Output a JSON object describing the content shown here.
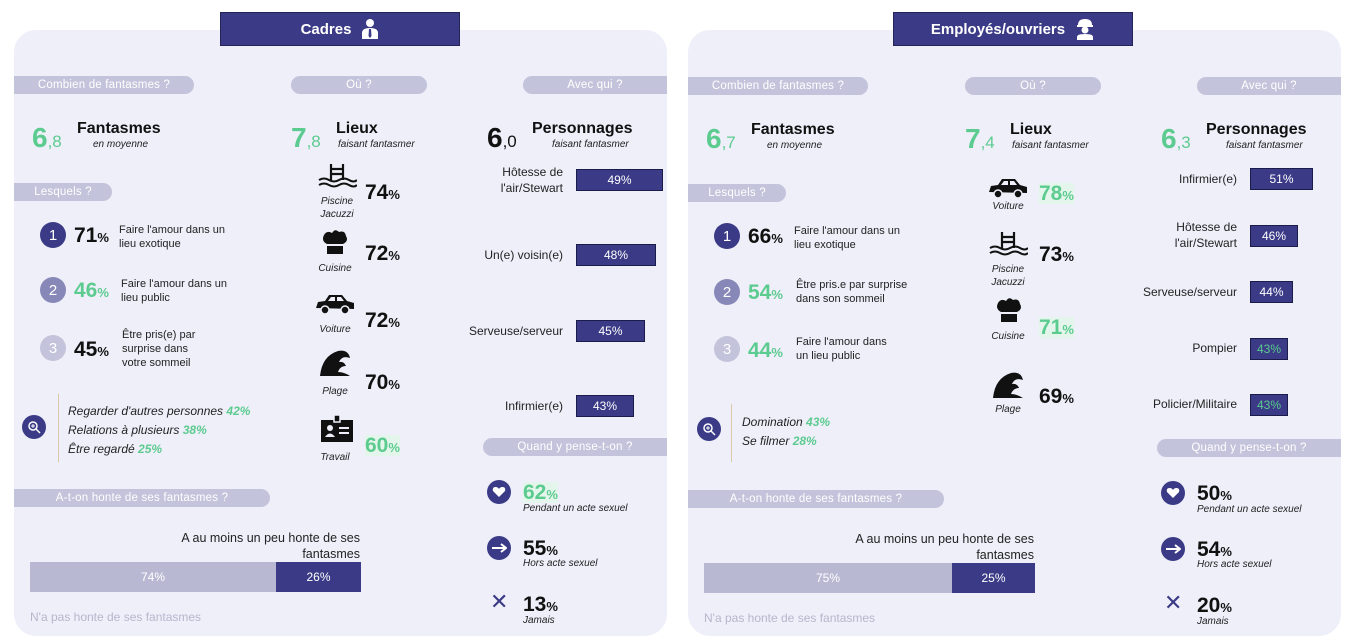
{
  "colors": {
    "navy": "#3a3a86",
    "green": "#5ccb8f",
    "pill": "#c3c3db",
    "panel": "#efeffa"
  },
  "left": {
    "title": "Cadres",
    "count_label": "Combien de fantasmes ?",
    "where_label": "Où ?",
    "who_label": "Avec qui ?",
    "which_label": "Lesquels ?",
    "when_label": "Quand y pense-t-on ?",
    "shame_label": "A-t-on honte de ses fantasmes ?",
    "fant_int": "6",
    "fant_dec": ",8",
    "fant_title": "Fantasmes",
    "fant_sub": "en moyenne",
    "lieux_int": "7",
    "lieux_dec": ",8",
    "lieux_title": "Lieux",
    "lieux_sub": "faisant fantasmer",
    "pers_int": "6",
    "pers_dec": ",0",
    "pers_title": "Personnages",
    "pers_sub": "faisant fantasmer",
    "which": [
      {
        "rank": "1",
        "pct": "71",
        "text": "Faire l'amour dans un lieu exotique"
      },
      {
        "rank": "2",
        "pct": "46",
        "text": "Faire l'amour dans un lieu public"
      },
      {
        "rank": "3",
        "pct": "45",
        "text": "Être pris(e) par surprise dans votre sommeil"
      }
    ],
    "extras": [
      {
        "text": "Regarder d'autres personnes",
        "pct": "42%"
      },
      {
        "text": "Relations à plusieurs",
        "pct": "38%"
      },
      {
        "text": "Être regardé",
        "pct": "25%"
      }
    ],
    "places": [
      {
        "icon": "pool-icon",
        "label": "Piscine Jacuzzi",
        "pct": "74"
      },
      {
        "icon": "chef-hat-icon",
        "label": "Cuisine",
        "pct": "72"
      },
      {
        "icon": "car-icon",
        "label": "Voiture",
        "pct": "72"
      },
      {
        "icon": "wave-icon",
        "label": "Plage",
        "pct": "70"
      },
      {
        "icon": "badge-icon",
        "label": "Travail",
        "pct": "60"
      }
    ],
    "people": [
      {
        "label": "Hôtesse de l'air/Stewart",
        "value": "49%"
      },
      {
        "label": "Un(e) voisin(e)",
        "value": "48%"
      },
      {
        "label": "Serveuse/serveur",
        "value": "45%"
      },
      {
        "label": "Infirmier(e)",
        "value": "43%"
      }
    ],
    "when": [
      {
        "icon": "heart-icon",
        "pct": "62",
        "label": "Pendant un acte sexuel"
      },
      {
        "icon": "arrow-icon",
        "pct": "55",
        "label": "Hors acte sexuel"
      },
      {
        "icon": "cross-icon",
        "pct": "13",
        "label": "Jamais"
      }
    ],
    "shame_text": "A au moins un peu honte de ses fantasmes",
    "shame_no": "74%",
    "shame_yes": "26%",
    "shame_no_value": 74,
    "shame_yes_value": 26,
    "shame_bottom": "N'a pas honte de ses fantasmes"
  },
  "right": {
    "title": "Employés/ouvriers",
    "count_label": "Combien de fantasmes ?",
    "where_label": "Où ?",
    "who_label": "Avec qui ?",
    "which_label": "Lesquels ?",
    "when_label": "Quand y pense-t-on ?",
    "shame_label": "A-t-on honte de ses fantasmes ?",
    "fant_int": "6",
    "fant_dec": ",7",
    "fant_title": "Fantasmes",
    "fant_sub": "en moyenne",
    "lieux_int": "7",
    "lieux_dec": ",4",
    "lieux_title": "Lieux",
    "lieux_sub": "faisant fantasmer",
    "pers_int": "6",
    "pers_dec": ",3",
    "pers_title": "Personnages",
    "pers_sub": "faisant fantasmer",
    "which": [
      {
        "rank": "1",
        "pct": "66",
        "text": "Faire l'amour dans un lieu exotique"
      },
      {
        "rank": "2",
        "pct": "54",
        "text": "Être pris.e par surprise dans son sommeil"
      },
      {
        "rank": "3",
        "pct": "44",
        "text": "Faire l'amour dans un lieu public"
      }
    ],
    "extras": [
      {
        "text": "Domination",
        "pct": "43%"
      },
      {
        "text": "Se filmer",
        "pct": "28%"
      }
    ],
    "places": [
      {
        "icon": "car-icon",
        "label": "Voiture",
        "pct": "78"
      },
      {
        "icon": "pool-icon",
        "label": "Piscine Jacuzzi",
        "pct": "73"
      },
      {
        "icon": "chef-hat-icon",
        "label": "Cuisine",
        "pct": "71"
      },
      {
        "icon": "wave-icon",
        "label": "Plage",
        "pct": "69"
      }
    ],
    "people": [
      {
        "label": "Infirmier(e)",
        "value": "51%"
      },
      {
        "label": "Hôtesse de l'air/Stewart",
        "value": "46%"
      },
      {
        "label": "Serveuse/serveur",
        "value": "44%"
      },
      {
        "label": "Pompier",
        "value": "43%"
      },
      {
        "label": "Policier/Militaire",
        "value": "43%"
      }
    ],
    "when": [
      {
        "icon": "heart-icon",
        "pct": "50",
        "label": "Pendant un acte sexuel"
      },
      {
        "icon": "arrow-icon",
        "pct": "54",
        "label": "Hors acte sexuel"
      },
      {
        "icon": "cross-icon",
        "pct": "20",
        "label": "Jamais"
      }
    ],
    "shame_text": "A au moins un peu honte de ses fantasmes",
    "shame_no": "75%",
    "shame_yes": "25%",
    "shame_no_value": 75,
    "shame_yes_value": 25,
    "shame_bottom": "N'a pas honte de ses fantasmes"
  }
}
